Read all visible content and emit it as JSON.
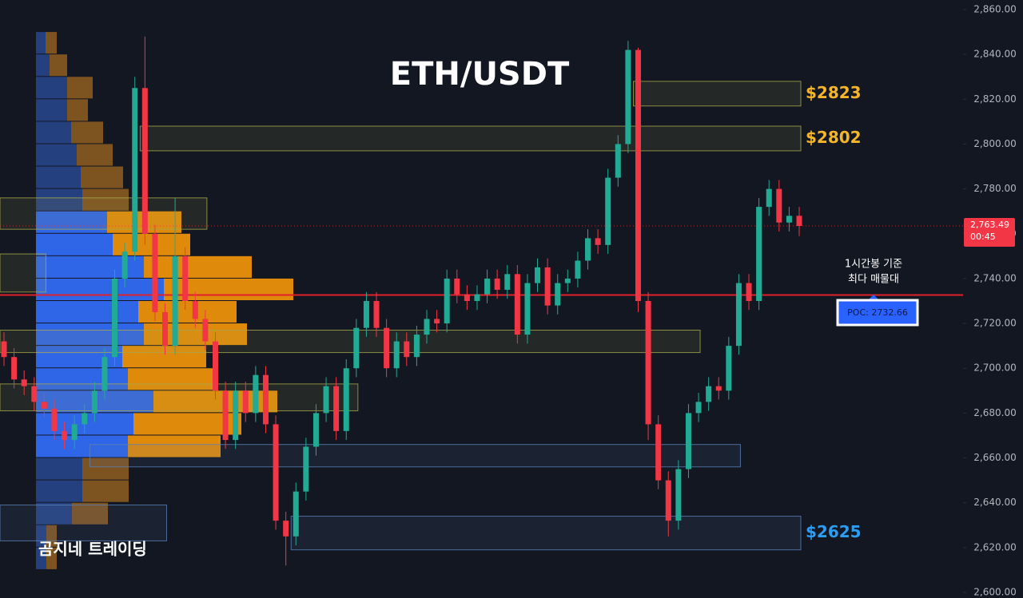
{
  "chart_data": {
    "type": "candlestick",
    "title": "ETH/USDT",
    "watermark": "곰지네 트레이딩",
    "annotation": [
      "1시간봉 기준",
      "최다 매물대"
    ],
    "ylim": [
      2600,
      2860
    ],
    "yticks": [
      {
        "value": 2600,
        "label": "2,600.00"
      },
      {
        "value": 2620,
        "label": "2,620.00"
      },
      {
        "value": 2640,
        "label": "2,640.00"
      },
      {
        "value": 2660,
        "label": "2,660.00"
      },
      {
        "value": 2680,
        "label": "2,680.00"
      },
      {
        "value": 2700,
        "label": "2,700.00"
      },
      {
        "value": 2720,
        "label": "2,720.00"
      },
      {
        "value": 2740,
        "label": "2,740.00"
      },
      {
        "value": 2760,
        "label": "2,760.00"
      },
      {
        "value": 2780,
        "label": "2,780.00"
      },
      {
        "value": 2800,
        "label": "2,800.00"
      },
      {
        "value": 2820,
        "label": "2,820.00"
      },
      {
        "value": 2840,
        "label": "2,840.00"
      },
      {
        "value": 2860,
        "label": "2,860.00"
      }
    ],
    "up_color": "#22ab94",
    "down_color": "#f23645",
    "open": [
      2712,
      2705,
      2695,
      2692,
      2685,
      2682,
      2672,
      2668,
      2675,
      2680,
      2690,
      2705,
      2740,
      2752,
      2825,
      2760,
      2725,
      2710,
      2750,
      2730,
      2722,
      2712,
      2690,
      2668,
      2690,
      2680,
      2697,
      2675,
      2632,
      2625,
      2645,
      2665,
      2680,
      2692,
      2672,
      2700,
      2718,
      2730,
      2718,
      2700,
      2712,
      2705,
      2715,
      2722,
      2720,
      2740,
      2733,
      2730,
      2733,
      2740,
      2735,
      2742,
      2715,
      2738,
      2745,
      2728,
      2738,
      2740,
      2748,
      2758,
      2755,
      2785,
      2800,
      2842,
      2730,
      2675,
      2650,
      2632,
      2655,
      2680,
      2685,
      2692,
      2690,
      2710,
      2738,
      2730,
      2772,
      2780,
      2765,
      2768
    ],
    "high": [
      2716,
      2709,
      2699,
      2696,
      2689,
      2686,
      2676,
      2679,
      2684,
      2694,
      2709,
      2744,
      2756,
      2830,
      2848,
      2764,
      2729,
      2776,
      2754,
      2734,
      2726,
      2716,
      2694,
      2694,
      2694,
      2701,
      2701,
      2679,
      2636,
      2649,
      2669,
      2684,
      2696,
      2696,
      2704,
      2722,
      2734,
      2734,
      2722,
      2716,
      2716,
      2719,
      2726,
      2726,
      2744,
      2744,
      2737,
      2737,
      2744,
      2744,
      2746,
      2746,
      2742,
      2749,
      2749,
      2742,
      2744,
      2752,
      2762,
      2762,
      2789,
      2804,
      2846,
      2843,
      2734,
      2679,
      2654,
      2659,
      2684,
      2689,
      2696,
      2696,
      2714,
      2742,
      2742,
      2776,
      2784,
      2784,
      2772,
      2772
    ],
    "low": [
      2701,
      2691,
      2688,
      2681,
      2678,
      2668,
      2664,
      2664,
      2671,
      2676,
      2686,
      2701,
      2736,
      2748,
      2755,
      2721,
      2706,
      2706,
      2726,
      2718,
      2708,
      2686,
      2664,
      2664,
      2676,
      2676,
      2671,
      2628,
      2612,
      2621,
      2641,
      2661,
      2676,
      2668,
      2668,
      2696,
      2714,
      2714,
      2696,
      2696,
      2701,
      2701,
      2711,
      2716,
      2716,
      2729,
      2726,
      2726,
      2729,
      2731,
      2731,
      2711,
      2711,
      2734,
      2724,
      2724,
      2734,
      2736,
      2744,
      2751,
      2751,
      2781,
      2796,
      2725,
      2668,
      2646,
      2625,
      2628,
      2651,
      2676,
      2681,
      2686,
      2686,
      2706,
      2726,
      2726,
      2768,
      2761,
      2761,
      2759
    ],
    "close": [
      2705,
      2695,
      2692,
      2685,
      2682,
      2672,
      2668,
      2675,
      2680,
      2690,
      2705,
      2740,
      2752,
      2825,
      2760,
      2725,
      2710,
      2750,
      2730,
      2722,
      2712,
      2690,
      2668,
      2690,
      2680,
      2697,
      2675,
      2632,
      2625,
      2645,
      2665,
      2680,
      2692,
      2672,
      2700,
      2718,
      2730,
      2718,
      2700,
      2712,
      2705,
      2715,
      2722,
      2720,
      2740,
      2733,
      2730,
      2733,
      2740,
      2735,
      2742,
      2715,
      2738,
      2745,
      2728,
      2738,
      2740,
      2748,
      2758,
      2755,
      2785,
      2800,
      2842,
      2730,
      2675,
      2650,
      2632,
      2655,
      2680,
      2685,
      2692,
      2690,
      2710,
      2738,
      2730,
      2772,
      2780,
      2765,
      2768,
      2763.49
    ],
    "last_price_label": "2,763.49",
    "countdown": "00:45",
    "poc": 2732.66,
    "poc_label": "POC: 2732.66",
    "zones": [
      {
        "low": 2817,
        "high": 2828,
        "start": 63,
        "end": 79,
        "color": "#a8a84a",
        "label": "$2823",
        "label_color": "#f5b52a"
      },
      {
        "low": 2797,
        "high": 2808,
        "start": 14,
        "end": 79,
        "color": "#a8a84a",
        "label": "$2802",
        "label_color": "#f5b52a"
      },
      {
        "low": 2762,
        "high": 2776,
        "start": 0,
        "end": 20,
        "color": "#a8a84a"
      },
      {
        "low": 2734,
        "high": 2751,
        "start": 0,
        "end": 4,
        "color": "#a8a84a"
      },
      {
        "low": 2707,
        "high": 2717,
        "start": 0,
        "end": 69,
        "color": "#a8a84a"
      },
      {
        "low": 2681,
        "high": 2693,
        "start": 0,
        "end": 35,
        "color": "#a8a84a"
      },
      {
        "low": 2656,
        "high": 2666,
        "start": 9,
        "end": 73,
        "color": "#5a7fb8"
      },
      {
        "low": 2623,
        "high": 2639,
        "start": 0,
        "end": 16,
        "color": "#5a7fb8"
      },
      {
        "low": 2619,
        "high": 2634,
        "start": 29,
        "end": 79,
        "color": "#5a7fb8",
        "label": "$2625",
        "label_color": "#2a9df4"
      }
    ],
    "volume_profile": {
      "bins": [
        2850,
        2840,
        2830,
        2820,
        2810,
        2800,
        2790,
        2780,
        2770,
        2760,
        2750,
        2740,
        2730,
        2720,
        2710,
        2700,
        2690,
        2680,
        2670,
        2660,
        2650,
        2640,
        2630,
        2620,
        2610
      ],
      "buy": [
        12,
        17,
        39,
        39,
        44,
        51,
        56,
        58,
        89,
        96,
        135,
        160,
        128,
        135,
        108,
        115,
        147,
        122,
        115,
        58,
        58,
        45,
        13,
        13
      ],
      "sell": [
        14,
        22,
        32,
        26,
        40,
        45,
        53,
        58,
        93,
        97,
        135,
        162,
        123,
        129,
        105,
        110,
        155,
        135,
        116,
        58,
        58,
        45,
        13,
        13
      ],
      "value_area": [
        2660,
        2770
      ],
      "colors": [
        "#2f66e8",
        "#e08a0c",
        "#25407e",
        "#7d5320"
      ]
    }
  }
}
